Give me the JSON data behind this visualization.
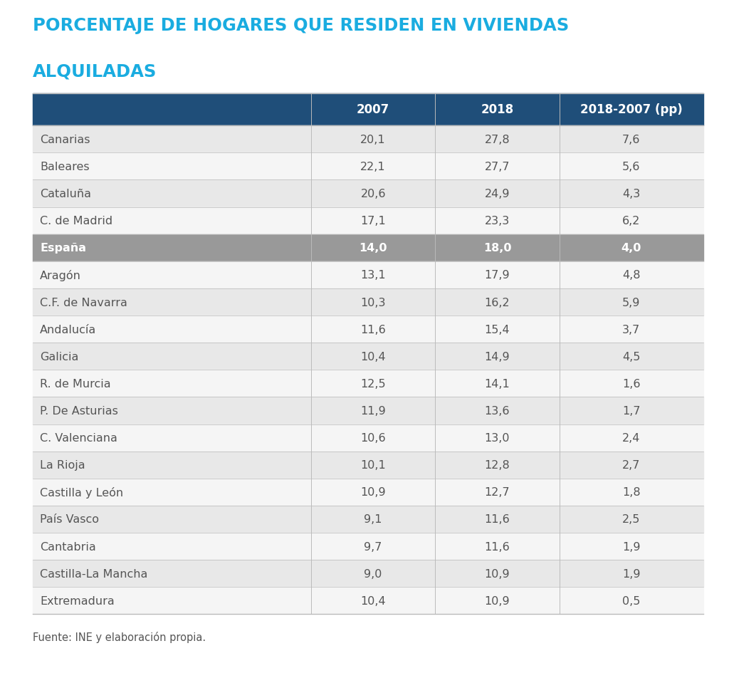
{
  "title_line1": "PORCENTAJE DE HOGARES QUE RESIDEN EN VIVIENDAS",
  "title_line2": "ALQUILADAS",
  "title_color": "#1AACE0",
  "header_bg": "#1F4E79",
  "header_text_color": "#FFFFFF",
  "espana_bg": "#999999",
  "espana_text_color": "#FFFFFF",
  "row_bg_even": "#E8E8E8",
  "row_bg_odd": "#F5F5F5",
  "text_color": "#555555",
  "border_color": "#BBBBBB",
  "footer": "Fuente: INE y elaboración propia.",
  "columns": [
    "",
    "2007",
    "2018",
    "2018-2007 (pp)"
  ],
  "rows": [
    {
      "name": "Canarias",
      "v2007": "20,1",
      "v2018": "27,8",
      "diff": "7,6",
      "highlight": false
    },
    {
      "name": "Baleares",
      "v2007": "22,1",
      "v2018": "27,7",
      "diff": "5,6",
      "highlight": false
    },
    {
      "name": "Cataluña",
      "v2007": "20,6",
      "v2018": "24,9",
      "diff": "4,3",
      "highlight": false
    },
    {
      "name": "C. de Madrid",
      "v2007": "17,1",
      "v2018": "23,3",
      "diff": "6,2",
      "highlight": false
    },
    {
      "name": "España",
      "v2007": "14,0",
      "v2018": "18,0",
      "diff": "4,0",
      "highlight": true
    },
    {
      "name": "Aragón",
      "v2007": "13,1",
      "v2018": "17,9",
      "diff": "4,8",
      "highlight": false
    },
    {
      "name": "C.F. de Navarra",
      "v2007": "10,3",
      "v2018": "16,2",
      "diff": "5,9",
      "highlight": false
    },
    {
      "name": "Andalucía",
      "v2007": "11,6",
      "v2018": "15,4",
      "diff": "3,7",
      "highlight": false
    },
    {
      "name": "Galicia",
      "v2007": "10,4",
      "v2018": "14,9",
      "diff": "4,5",
      "highlight": false
    },
    {
      "name": "R. de Murcia",
      "v2007": "12,5",
      "v2018": "14,1",
      "diff": "1,6",
      "highlight": false
    },
    {
      "name": "P. De Asturias",
      "v2007": "11,9",
      "v2018": "13,6",
      "diff": "1,7",
      "highlight": false
    },
    {
      "name": "C. Valenciana",
      "v2007": "10,6",
      "v2018": "13,0",
      "diff": "2,4",
      "highlight": false
    },
    {
      "name": "La Rioja",
      "v2007": "10,1",
      "v2018": "12,8",
      "diff": "2,7",
      "highlight": false
    },
    {
      "name": "Castilla y León",
      "v2007": "10,9",
      "v2018": "12,7",
      "diff": "1,8",
      "highlight": false
    },
    {
      "name": "País Vasco",
      "v2007": "9,1",
      "v2018": "11,6",
      "diff": "2,5",
      "highlight": false
    },
    {
      "name": "Cantabria",
      "v2007": "9,7",
      "v2018": "11,6",
      "diff": "1,9",
      "highlight": false
    },
    {
      "name": "Castilla-La Mancha",
      "v2007": "9,0",
      "v2018": "10,9",
      "diff": "1,9",
      "highlight": false
    },
    {
      "name": "Extremadura",
      "v2007": "10,4",
      "v2018": "10,9",
      "diff": "0,5",
      "highlight": false
    }
  ]
}
